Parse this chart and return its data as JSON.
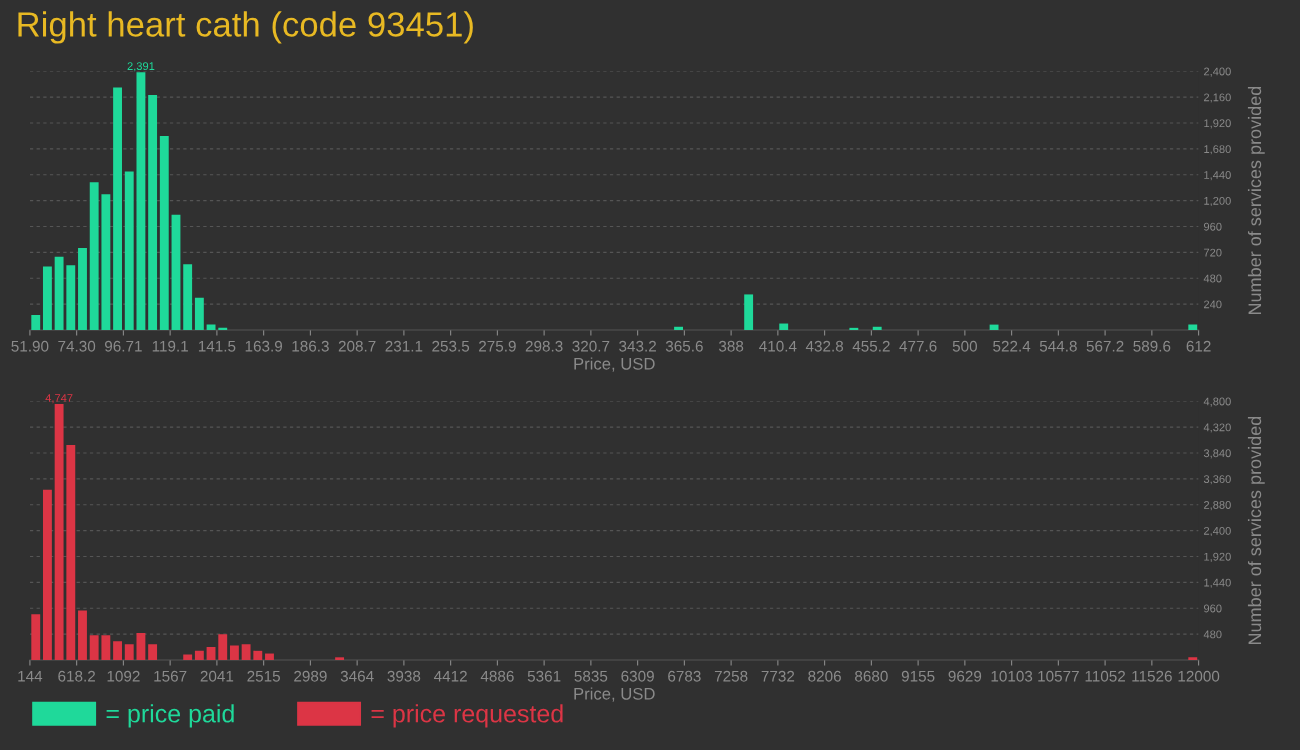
{
  "chart_data": [
    {
      "type": "histogram",
      "title": "Right heart cath (code 93451)",
      "xlabel": "Price, USD",
      "ylabel": "Number of services provided",
      "bins": [
        51.9,
        57.5,
        63.1,
        68.7,
        74.3,
        79.91,
        85.51,
        91.11,
        96.71,
        102.31,
        107.91,
        113.51,
        119.11,
        124.71,
        130.31,
        135.92,
        141.52,
        147.12,
        359.96,
        365.56,
        393.56,
        399.16,
        410.36,
        415.97,
        443.97,
        449.57,
        455.17,
        460.77,
        511.18,
        516.78,
        606.4,
        612
      ],
      "series": [
        {
          "name": "= price paid",
          "color": "#1fd99a",
          "values": [
            140,
            590,
            680,
            600,
            760,
            1370,
            1260,
            2250,
            1470,
            2391,
            2180,
            1800,
            1070,
            610,
            300,
            50,
            20,
            0,
            30,
            0,
            330,
            0,
            60,
            0,
            20,
            0,
            30,
            0,
            50,
            0,
            50
          ],
          "value_labels": [
            null,
            null,
            null,
            null,
            null,
            null,
            null,
            null,
            null,
            "2,391",
            null,
            null,
            null,
            null,
            null,
            null,
            null,
            null,
            null,
            null,
            null,
            null,
            null,
            null,
            null,
            null,
            null,
            null,
            null,
            null,
            null
          ]
        }
      ],
      "xlim": [
        51.9,
        612
      ],
      "ylim": [
        0,
        2400
      ],
      "xticks": [
        {
          "value": 51.9,
          "label": "51.90"
        },
        {
          "value": 74.304,
          "label": "74.30"
        },
        {
          "value": 96.708,
          "label": "96.71"
        },
        {
          "value": 119.112,
          "label": "119.1"
        },
        {
          "value": 141.516,
          "label": "141.5"
        },
        {
          "value": 163.92,
          "label": "163.9"
        },
        {
          "value": 186.324,
          "label": "186.3"
        },
        {
          "value": 208.728,
          "label": "208.7"
        },
        {
          "value": 231.132,
          "label": "231.1"
        },
        {
          "value": 253.536,
          "label": "253.5"
        },
        {
          "value": 275.94,
          "label": "275.9"
        },
        {
          "value": 298.344,
          "label": "298.3"
        },
        {
          "value": 320.748,
          "label": "320.7"
        },
        {
          "value": 343.152,
          "label": "343.2"
        },
        {
          "value": 365.556,
          "label": "365.6"
        },
        {
          "value": 387.96,
          "label": "388"
        },
        {
          "value": 410.364,
          "label": "410.4"
        },
        {
          "value": 432.768,
          "label": "432.8"
        },
        {
          "value": 455.172,
          "label": "455.2"
        },
        {
          "value": 477.576,
          "label": "477.6"
        },
        {
          "value": 499.98,
          "label": "500"
        },
        {
          "value": 522.384,
          "label": "522.4"
        },
        {
          "value": 544.788,
          "label": "544.8"
        },
        {
          "value": 567.192,
          "label": "567.2"
        },
        {
          "value": 589.596,
          "label": "589.6"
        },
        {
          "value": 612,
          "label": "612"
        }
      ],
      "yticks": [
        {
          "value": 240,
          "label": "240"
        },
        {
          "value": 480,
          "label": "480"
        },
        {
          "value": 720,
          "label": "720"
        },
        {
          "value": 960,
          "label": "960"
        },
        {
          "value": 1200,
          "label": "1,200"
        },
        {
          "value": 1440,
          "label": "1,440"
        },
        {
          "value": 1680,
          "label": "1,680"
        },
        {
          "value": 1920,
          "label": "1,920"
        },
        {
          "value": 2160,
          "label": "2,160"
        },
        {
          "value": 2400,
          "label": "2,400"
        }
      ],
      "grid": "y",
      "legend": "bottom left"
    },
    {
      "type": "histogram",
      "xlabel": "Price, USD",
      "ylabel": "Number of services provided",
      "bins": [
        144,
        262.56,
        381.12,
        499.68,
        618.24,
        736.8,
        855.36,
        973.92,
        1092.48,
        1211.04,
        1329.6,
        1448.16,
        1685.28,
        1803.84,
        1922.4,
        2040.96,
        2159.52,
        2278.08,
        2396.64,
        2515.2,
        2633.76,
        3226.56,
        3345.12,
        11881.44,
        12000
      ],
      "series": [
        {
          "name": "= price requested",
          "color": "#dc3545",
          "values": [
            850,
            3160,
            4747,
            3990,
            920,
            460,
            460,
            350,
            290,
            500,
            290,
            0,
            100,
            170,
            240,
            480,
            270,
            290,
            170,
            120,
            0,
            50,
            0,
            50
          ],
          "value_labels": [
            null,
            null,
            "4,747",
            null,
            null,
            null,
            null,
            null,
            null,
            null,
            null,
            null,
            null,
            null,
            null,
            null,
            null,
            null,
            null,
            null,
            null,
            null,
            null,
            null
          ]
        }
      ],
      "xlim": [
        144,
        12000
      ],
      "ylim": [
        0,
        4800
      ],
      "xticks": [
        {
          "value": 144,
          "label": "144"
        },
        {
          "value": 618.24,
          "label": "618.2"
        },
        {
          "value": 1092.48,
          "label": "1092"
        },
        {
          "value": 1566.72,
          "label": "1567"
        },
        {
          "value": 2040.96,
          "label": "2041"
        },
        {
          "value": 2515.2,
          "label": "2515"
        },
        {
          "value": 2989.44,
          "label": "2989"
        },
        {
          "value": 3463.68,
          "label": "3464"
        },
        {
          "value": 3937.92,
          "label": "3938"
        },
        {
          "value": 4412.16,
          "label": "4412"
        },
        {
          "value": 4886.4,
          "label": "4886"
        },
        {
          "value": 5360.64,
          "label": "5361"
        },
        {
          "value": 5834.88,
          "label": "5835"
        },
        {
          "value": 6309.12,
          "label": "6309"
        },
        {
          "value": 6783.36,
          "label": "6783"
        },
        {
          "value": 7257.6,
          "label": "7258"
        },
        {
          "value": 7731.84,
          "label": "7732"
        },
        {
          "value": 8206.08,
          "label": "8206"
        },
        {
          "value": 8680.32,
          "label": "8680"
        },
        {
          "value": 9154.56,
          "label": "9155"
        },
        {
          "value": 9628.8,
          "label": "9629"
        },
        {
          "value": 10103.04,
          "label": "10103"
        },
        {
          "value": 10577.28,
          "label": "10577"
        },
        {
          "value": 11051.52,
          "label": "11052"
        },
        {
          "value": 11525.76,
          "label": "11526"
        },
        {
          "value": 12000,
          "label": "12000"
        }
      ],
      "yticks": [
        {
          "value": 480,
          "label": "480"
        },
        {
          "value": 960,
          "label": "960"
        },
        {
          "value": 1440,
          "label": "1,440"
        },
        {
          "value": 1920,
          "label": "1,920"
        },
        {
          "value": 2400,
          "label": "2,400"
        },
        {
          "value": 2880,
          "label": "2,880"
        },
        {
          "value": 3360,
          "label": "3,360"
        },
        {
          "value": 3840,
          "label": "3,840"
        },
        {
          "value": 4320,
          "label": "4,320"
        },
        {
          "value": 4800,
          "label": "4,800"
        }
      ],
      "grid": "y",
      "legend": "bottom left"
    }
  ]
}
